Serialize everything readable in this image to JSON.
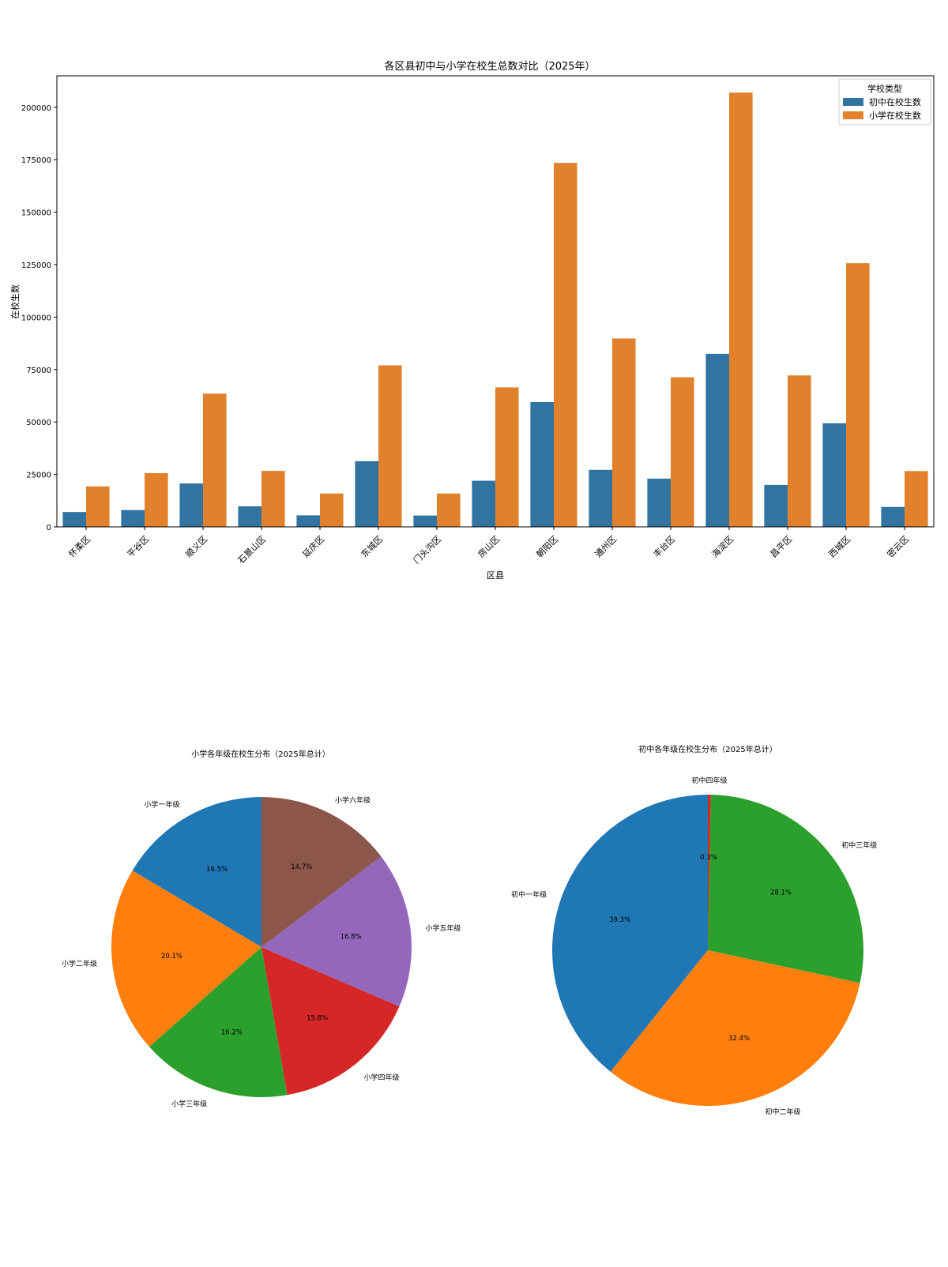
{
  "chart_data": [
    {
      "type": "bar",
      "title": "各区县初中与小学在校生总数对比（2025年）",
      "xlabel": "区县",
      "ylabel": "在校生数",
      "ylim": [
        0,
        215000
      ],
      "yticks": [
        0,
        25000,
        50000,
        75000,
        100000,
        125000,
        150000,
        175000,
        200000
      ],
      "grid": false,
      "categories": [
        "怀柔区",
        "平谷区",
        "顺义区",
        "石景山区",
        "延庆区",
        "东城区",
        "门头沟区",
        "房山区",
        "朝阳区",
        "通州区",
        "丰台区",
        "海淀区",
        "昌平区",
        "西城区",
        "密云区"
      ],
      "series": [
        {
          "name": "初中在校生数",
          "color": "#3274a1",
          "values": [
            7100,
            8000,
            20700,
            9800,
            5500,
            31300,
            5400,
            22000,
            59500,
            27200,
            23000,
            82500,
            20000,
            49400,
            9500
          ]
        },
        {
          "name": "小学在校生数",
          "color": "#e1812c",
          "values": [
            19300,
            25600,
            63500,
            26700,
            15900,
            77000,
            15900,
            66500,
            173500,
            89800,
            71300,
            207000,
            72200,
            125700,
            26600
          ]
        }
      ],
      "legend": {
        "title": "学校类型",
        "placement": "top-right"
      }
    },
    {
      "type": "pie",
      "title": "小学各年级在校生分布（2025年总计）",
      "labels": [
        "小学一年级",
        "小学二年级",
        "小学三年级",
        "小学四年级",
        "小学五年级",
        "小学六年级"
      ],
      "values": [
        16.5,
        20.1,
        16.2,
        15.8,
        16.8,
        14.7
      ],
      "value_labels": [
        "16.5%",
        "20.1%",
        "16.2%",
        "15.8%",
        "16.8%",
        "14.7%"
      ],
      "colors": [
        "#1f77b4",
        "#ff7f0e",
        "#2ca02c",
        "#d62728",
        "#9467bd",
        "#8c564b"
      ]
    },
    {
      "type": "pie",
      "title": "初中各年级在校生分布（2025年总计）",
      "labels": [
        "初中一年级",
        "初中二年级",
        "初中三年级",
        "初中四年级"
      ],
      "values": [
        39.3,
        32.4,
        28.1,
        0.3
      ],
      "value_labels": [
        "39.3%",
        "32.4%",
        "28.1%",
        "0.3%"
      ],
      "colors": [
        "#1f77b4",
        "#ff7f0e",
        "#2ca02c",
        "#d62728"
      ]
    }
  ]
}
